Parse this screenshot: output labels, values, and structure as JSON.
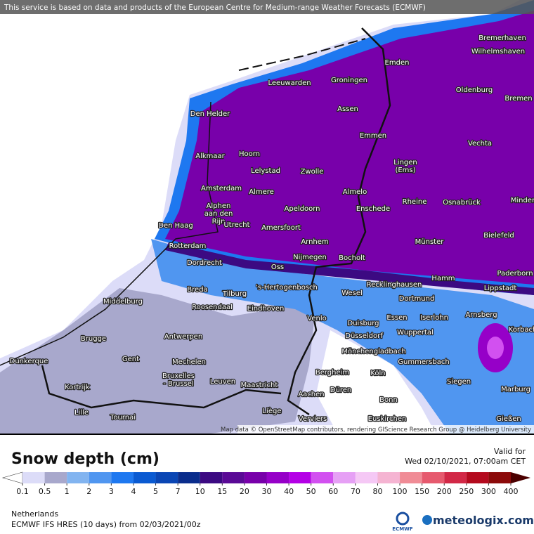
{
  "header": {
    "disclaimer": "This service is based on data and products of the European Centre for Medium-range Weather Forecasts (ECMWF)"
  },
  "map": {
    "attribution": "Map data © OpenStreetMap contributors, rendering GIScience Research Group @ Heidelberg University",
    "cities": [
      "Bremerhaven",
      "Wilhelmshaven",
      "Emden",
      "Leeuwarden",
      "Groningen",
      "Oldenburg",
      "Bremen",
      "Den Helder",
      "Assen",
      "Emmen",
      "Vechta",
      "Alkmaar",
      "Hoorn",
      "Lelystad",
      "Zwolle",
      "Lingen\n(Ems)",
      "Amsterdam",
      "Almere",
      "Almelo",
      "Rheine",
      "Osnabrück",
      "Minden",
      "Alphen\naan den\nRijn",
      "Apeldoorn",
      "Enschede",
      "Den Haag",
      "Utrecht",
      "Amersfoort",
      "Bielefeld",
      "Arnhem",
      "Münster",
      "Rotterdam",
      "Nijmegen",
      "Bocholt",
      "Dordrecht",
      "Oss",
      "Paderborn",
      "Hamm",
      "Breda",
      "Tilburg",
      "'s-Hertogenbosch",
      "Recklinghausen",
      "Wesel",
      "Lippstadt",
      "Middelburg",
      "Dortmund",
      "Roosendaal",
      "Eindhoven",
      "Arnsberg",
      "Venlo",
      "Essen",
      "Iserlohn",
      "Duisburg",
      "Korbach",
      "Wuppertal",
      "Antwerpen",
      "Düsseldorf",
      "Brugge",
      "Mönchengladbach",
      "Gent",
      "Dunkerque",
      "Mechelen",
      "Gummersbach",
      "Bergheim",
      "Köln",
      "Bruxelles\n- Brussel",
      "Leuven",
      "Siegen",
      "Maastricht",
      "Kortrijk",
      "Marburg",
      "Düren",
      "Aachen",
      "Bonn",
      "Lille",
      "Liège",
      "Tournai",
      "Gießen",
      "Verviers",
      "Euskirchen"
    ]
  },
  "legend": {
    "title": "Snow depth (cm)",
    "valid_label": "Valid for",
    "valid_time": "Wed 02/10/2021, 07:00am CET",
    "ticks": [
      0.1,
      0.5,
      1,
      2,
      3,
      4,
      5,
      7,
      10,
      15,
      20,
      30,
      40,
      50,
      60,
      70,
      80,
      100,
      150,
      200,
      250,
      300,
      400
    ],
    "colors": [
      "#ffffff",
      "#dcdcf8",
      "#a8a8cc",
      "#82b4f0",
      "#5096f0",
      "#1e78f0",
      "#0a5ad2",
      "#0a46b4",
      "#0a2d8c",
      "#3c0a82",
      "#5a0a96",
      "#7800aa",
      "#9600c8",
      "#b400e6",
      "#d250f0",
      "#e6a0f5",
      "#f5c8f5",
      "#f5b4d2",
      "#f08c96",
      "#e65a6e",
      "#d22846",
      "#b40a1e",
      "#8c0a0a",
      "#4b0000"
    ]
  },
  "footer": {
    "region": "Netherlands",
    "model": "ECMWF IFS HRES (10 days) from 02/03/2021/00z",
    "ecmwf": "ECMWF",
    "brand": "meteologix.com"
  }
}
